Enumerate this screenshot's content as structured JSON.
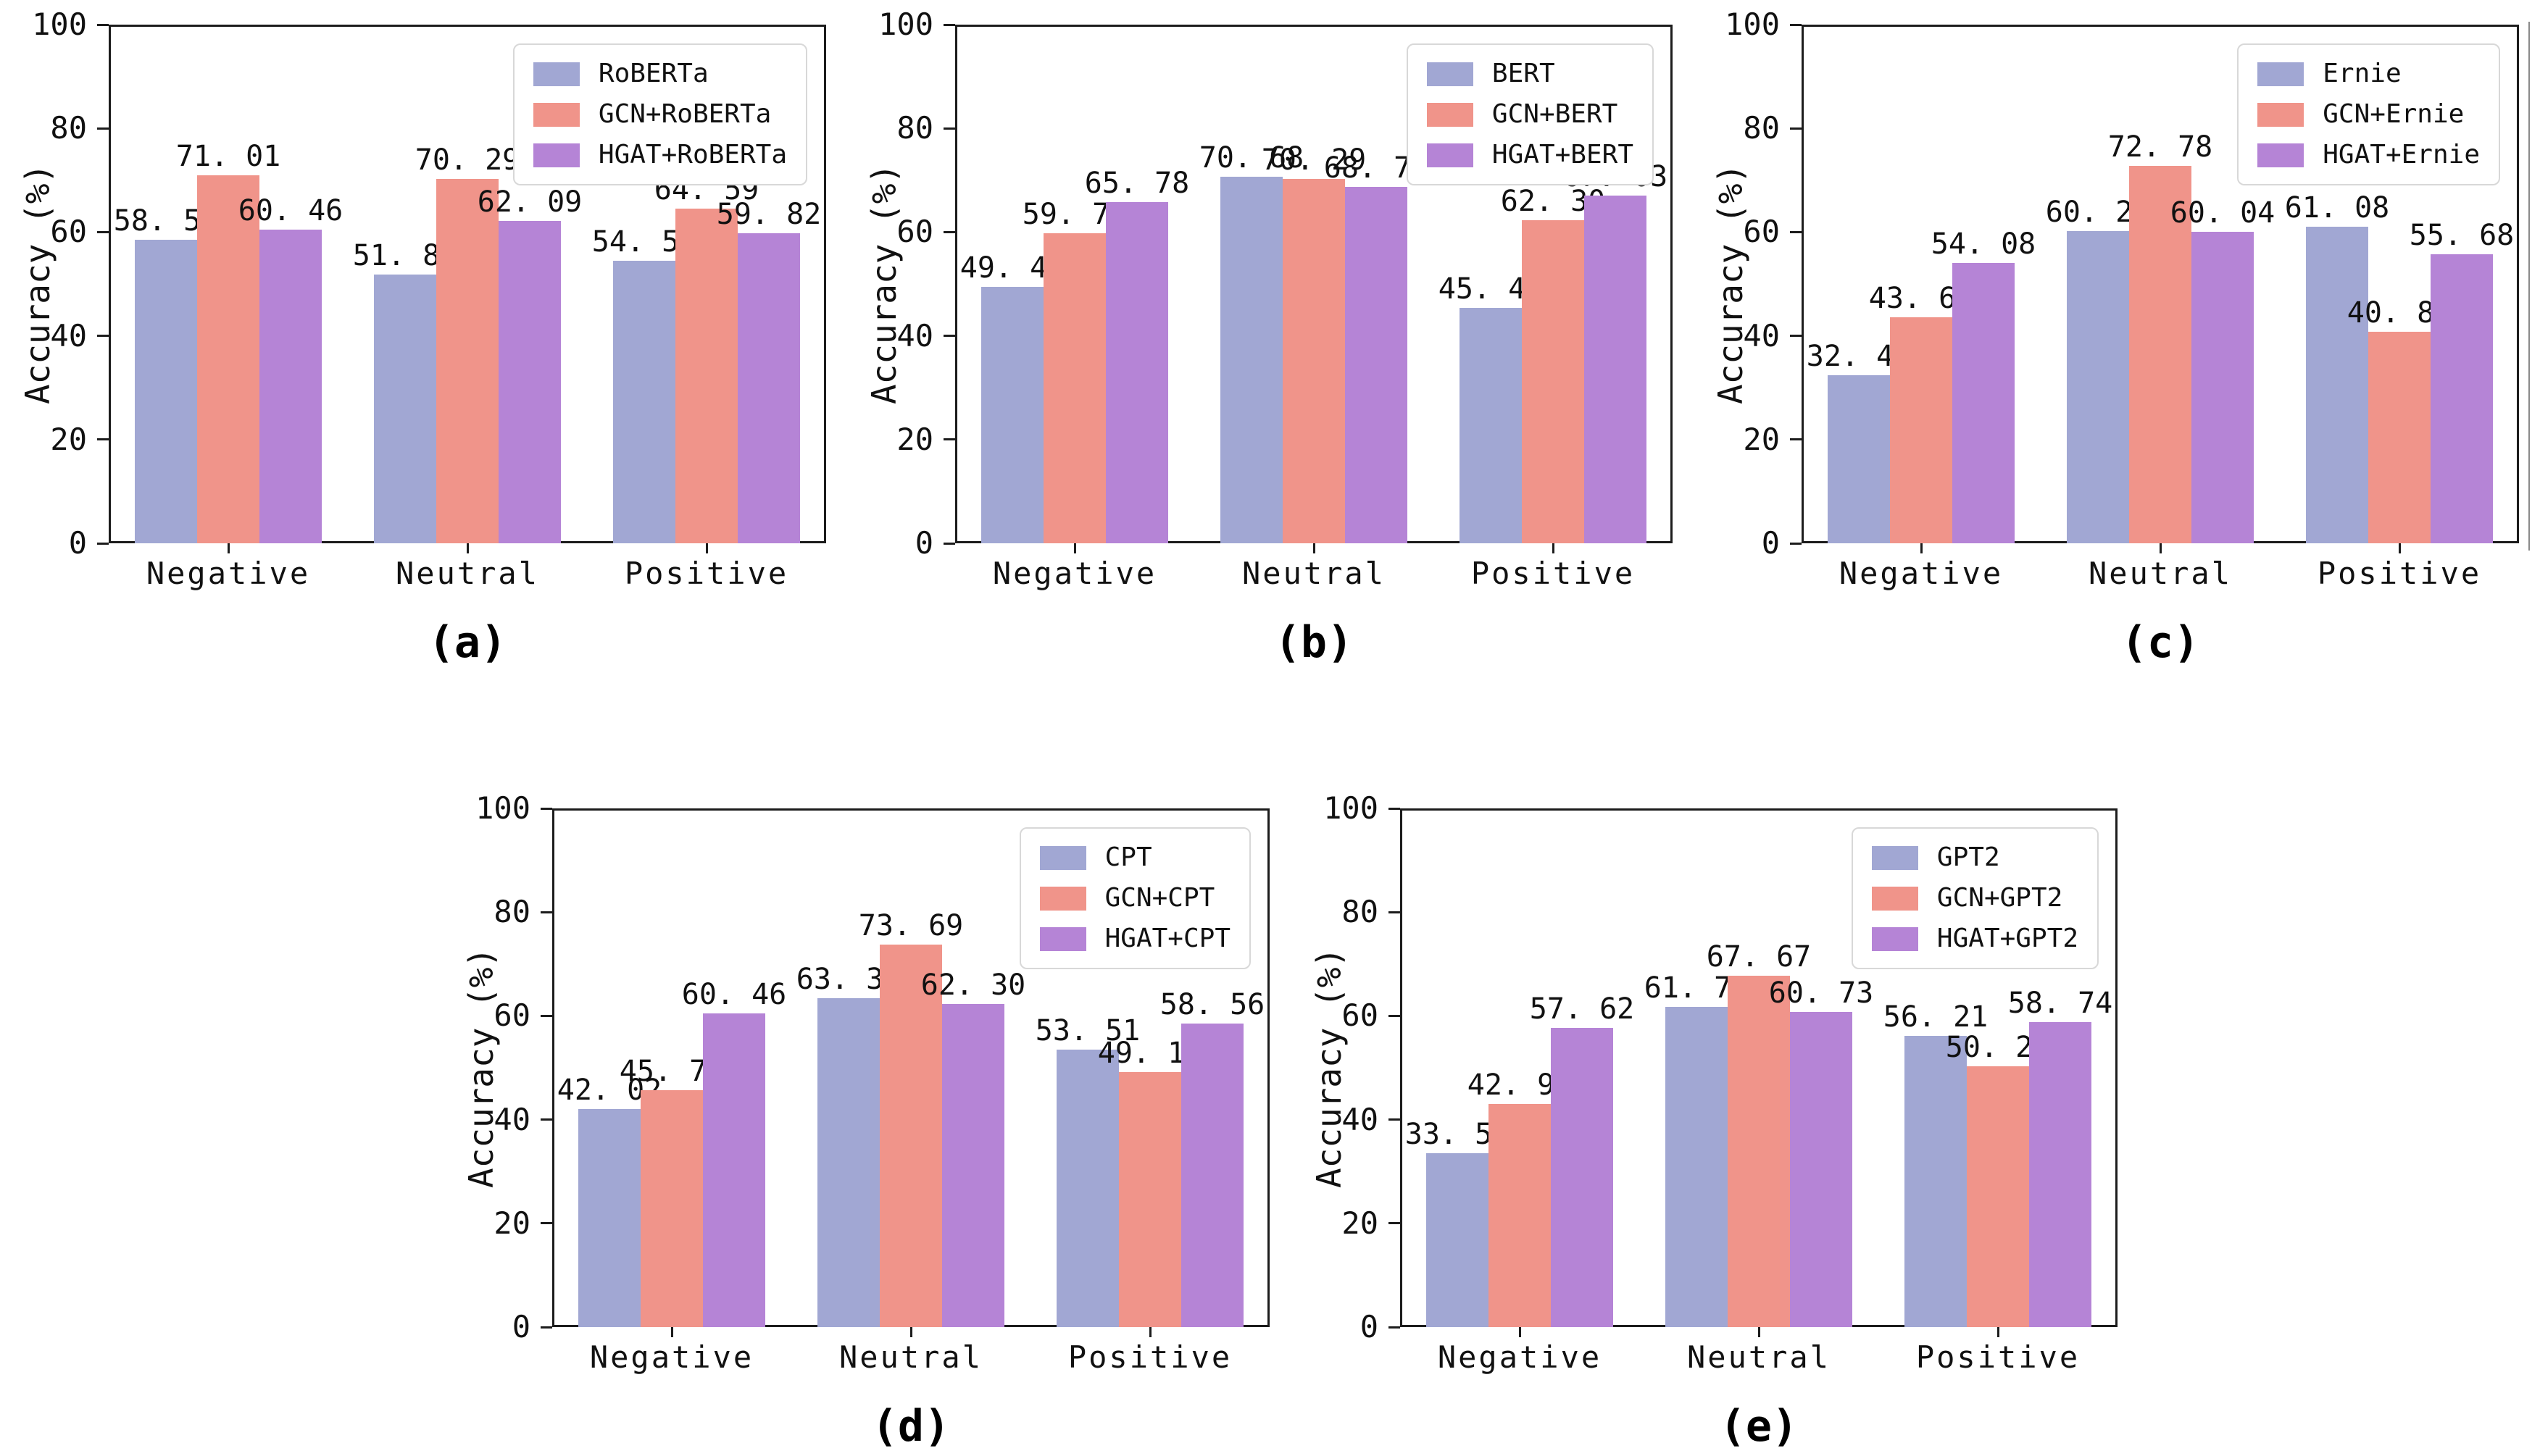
{
  "figure": {
    "background": "#ffffff",
    "ylabel": "Accuracy (%)",
    "categories": [
      "Negative",
      "Neutral",
      "Positive"
    ],
    "captions": [
      "(a)",
      "(b)",
      "(c)",
      "(d)",
      "(e)"
    ]
  },
  "colors": {
    "series": [
      "#a1a7d3",
      "#f0948a",
      "#b584d6"
    ],
    "axis": "#1c1c1c",
    "legend_border": "#d8d8d8",
    "text": "#111111"
  },
  "chart_data": [
    {
      "type": "bar",
      "caption": "(a)",
      "ylabel": "Accuracy (%)",
      "ylim": [
        0,
        100
      ],
      "yticks": [
        0,
        20,
        40,
        60,
        80,
        100
      ],
      "grid": false,
      "legend_position": "top-right",
      "categories": [
        "Negative",
        "Neutral",
        "Positive"
      ],
      "series": [
        {
          "name": "RoBERTa",
          "values": [
            58.51,
            51.83,
            54.5
          ],
          "labels": [
            "58. 51",
            "51. 83",
            "54. 50"
          ]
        },
        {
          "name": "GCN+RoBERTa",
          "values": [
            71.01,
            70.29,
            64.59
          ],
          "labels": [
            "71. 01",
            "70. 29",
            "64. 59"
          ]
        },
        {
          "name": "HGAT+RoBERTa",
          "values": [
            60.46,
            62.09,
            59.82
          ],
          "labels": [
            "60. 46",
            "62. 09",
            "59. 82"
          ]
        }
      ]
    },
    {
      "type": "bar",
      "caption": "(b)",
      "ylabel": "Accuracy (%)",
      "ylim": [
        0,
        100
      ],
      "yticks": [
        0,
        20,
        40,
        60,
        80,
        100
      ],
      "grid": false,
      "legend_position": "top-right",
      "categories": [
        "Negative",
        "Neutral",
        "Positive"
      ],
      "series": [
        {
          "name": "BERT",
          "values": [
            49.47,
            70.68,
            45.41
          ],
          "labels": [
            "49. 47",
            "70. 68",
            "45. 41"
          ]
        },
        {
          "name": "GCN+BERT",
          "values": [
            59.71,
            70.29,
            62.3
          ],
          "labels": [
            "59. 71",
            "70. 29",
            "62. 30"
          ]
        },
        {
          "name": "HGAT+BERT",
          "values": [
            65.78,
            68.76,
            67.03
          ],
          "labels": [
            "65. 78",
            "68. 76",
            "67. 03"
          ]
        }
      ]
    },
    {
      "type": "bar",
      "caption": "(c)",
      "ylabel": "Accuracy (%)",
      "ylim": [
        0,
        100
      ],
      "yticks": [
        0,
        20,
        40,
        60,
        80,
        100
      ],
      "grid": false,
      "legend_position": "top-right",
      "categories": [
        "Negative",
        "Neutral",
        "Positive"
      ],
      "series": [
        {
          "name": "Ernie",
          "values": [
            32.45,
            60.21,
            61.08
          ],
          "labels": [
            "32. 45",
            "60. 21",
            "61. 08"
          ]
        },
        {
          "name": "GCN+Ernie",
          "values": [
            43.62,
            72.78,
            40.81
          ],
          "labels": [
            "43. 62",
            "72. 78",
            "40. 81"
          ]
        },
        {
          "name": "HGAT+Ernie",
          "values": [
            54.08,
            60.04,
            55.68
          ],
          "labels": [
            "54. 08",
            "60. 04",
            "55. 68"
          ]
        }
      ]
    },
    {
      "type": "bar",
      "caption": "(d)",
      "ylabel": "Accuracy (%)",
      "ylim": [
        0,
        100
      ],
      "yticks": [
        0,
        20,
        40,
        60,
        80,
        100
      ],
      "grid": false,
      "legend_position": "top-right",
      "categories": [
        "Negative",
        "Neutral",
        "Positive"
      ],
      "series": [
        {
          "name": "CPT",
          "values": [
            42.02,
            63.35,
            53.51
          ],
          "labels": [
            "42. 02",
            "63. 35",
            "53. 51"
          ]
        },
        {
          "name": "GCN+CPT",
          "values": [
            45.74,
            73.69,
            49.19
          ],
          "labels": [
            "45. 74",
            "73. 69",
            "49. 19"
          ]
        },
        {
          "name": "HGAT+CPT",
          "values": [
            60.46,
            62.3,
            58.56
          ],
          "labels": [
            "60. 46",
            "62. 30",
            "58. 56"
          ]
        }
      ]
    },
    {
      "type": "bar",
      "caption": "(e)",
      "ylabel": "Accuracy (%)",
      "ylim": [
        0,
        100
      ],
      "yticks": [
        0,
        20,
        40,
        60,
        80,
        100
      ],
      "grid": false,
      "legend_position": "top-right",
      "categories": [
        "Negative",
        "Neutral",
        "Positive"
      ],
      "series": [
        {
          "name": "GPT2",
          "values": [
            33.51,
            61.78,
            56.21
          ],
          "labels": [
            "33. 51",
            "61. 78",
            "56. 21"
          ]
        },
        {
          "name": "GCN+GPT2",
          "values": [
            42.95,
            67.67,
            50.27
          ],
          "labels": [
            "42. 95",
            "67. 67",
            "50. 27"
          ]
        },
        {
          "name": "HGAT+GPT2",
          "values": [
            57.62,
            60.73,
            58.74
          ],
          "labels": [
            "57. 62",
            "60. 73",
            "58. 74"
          ]
        }
      ]
    }
  ]
}
